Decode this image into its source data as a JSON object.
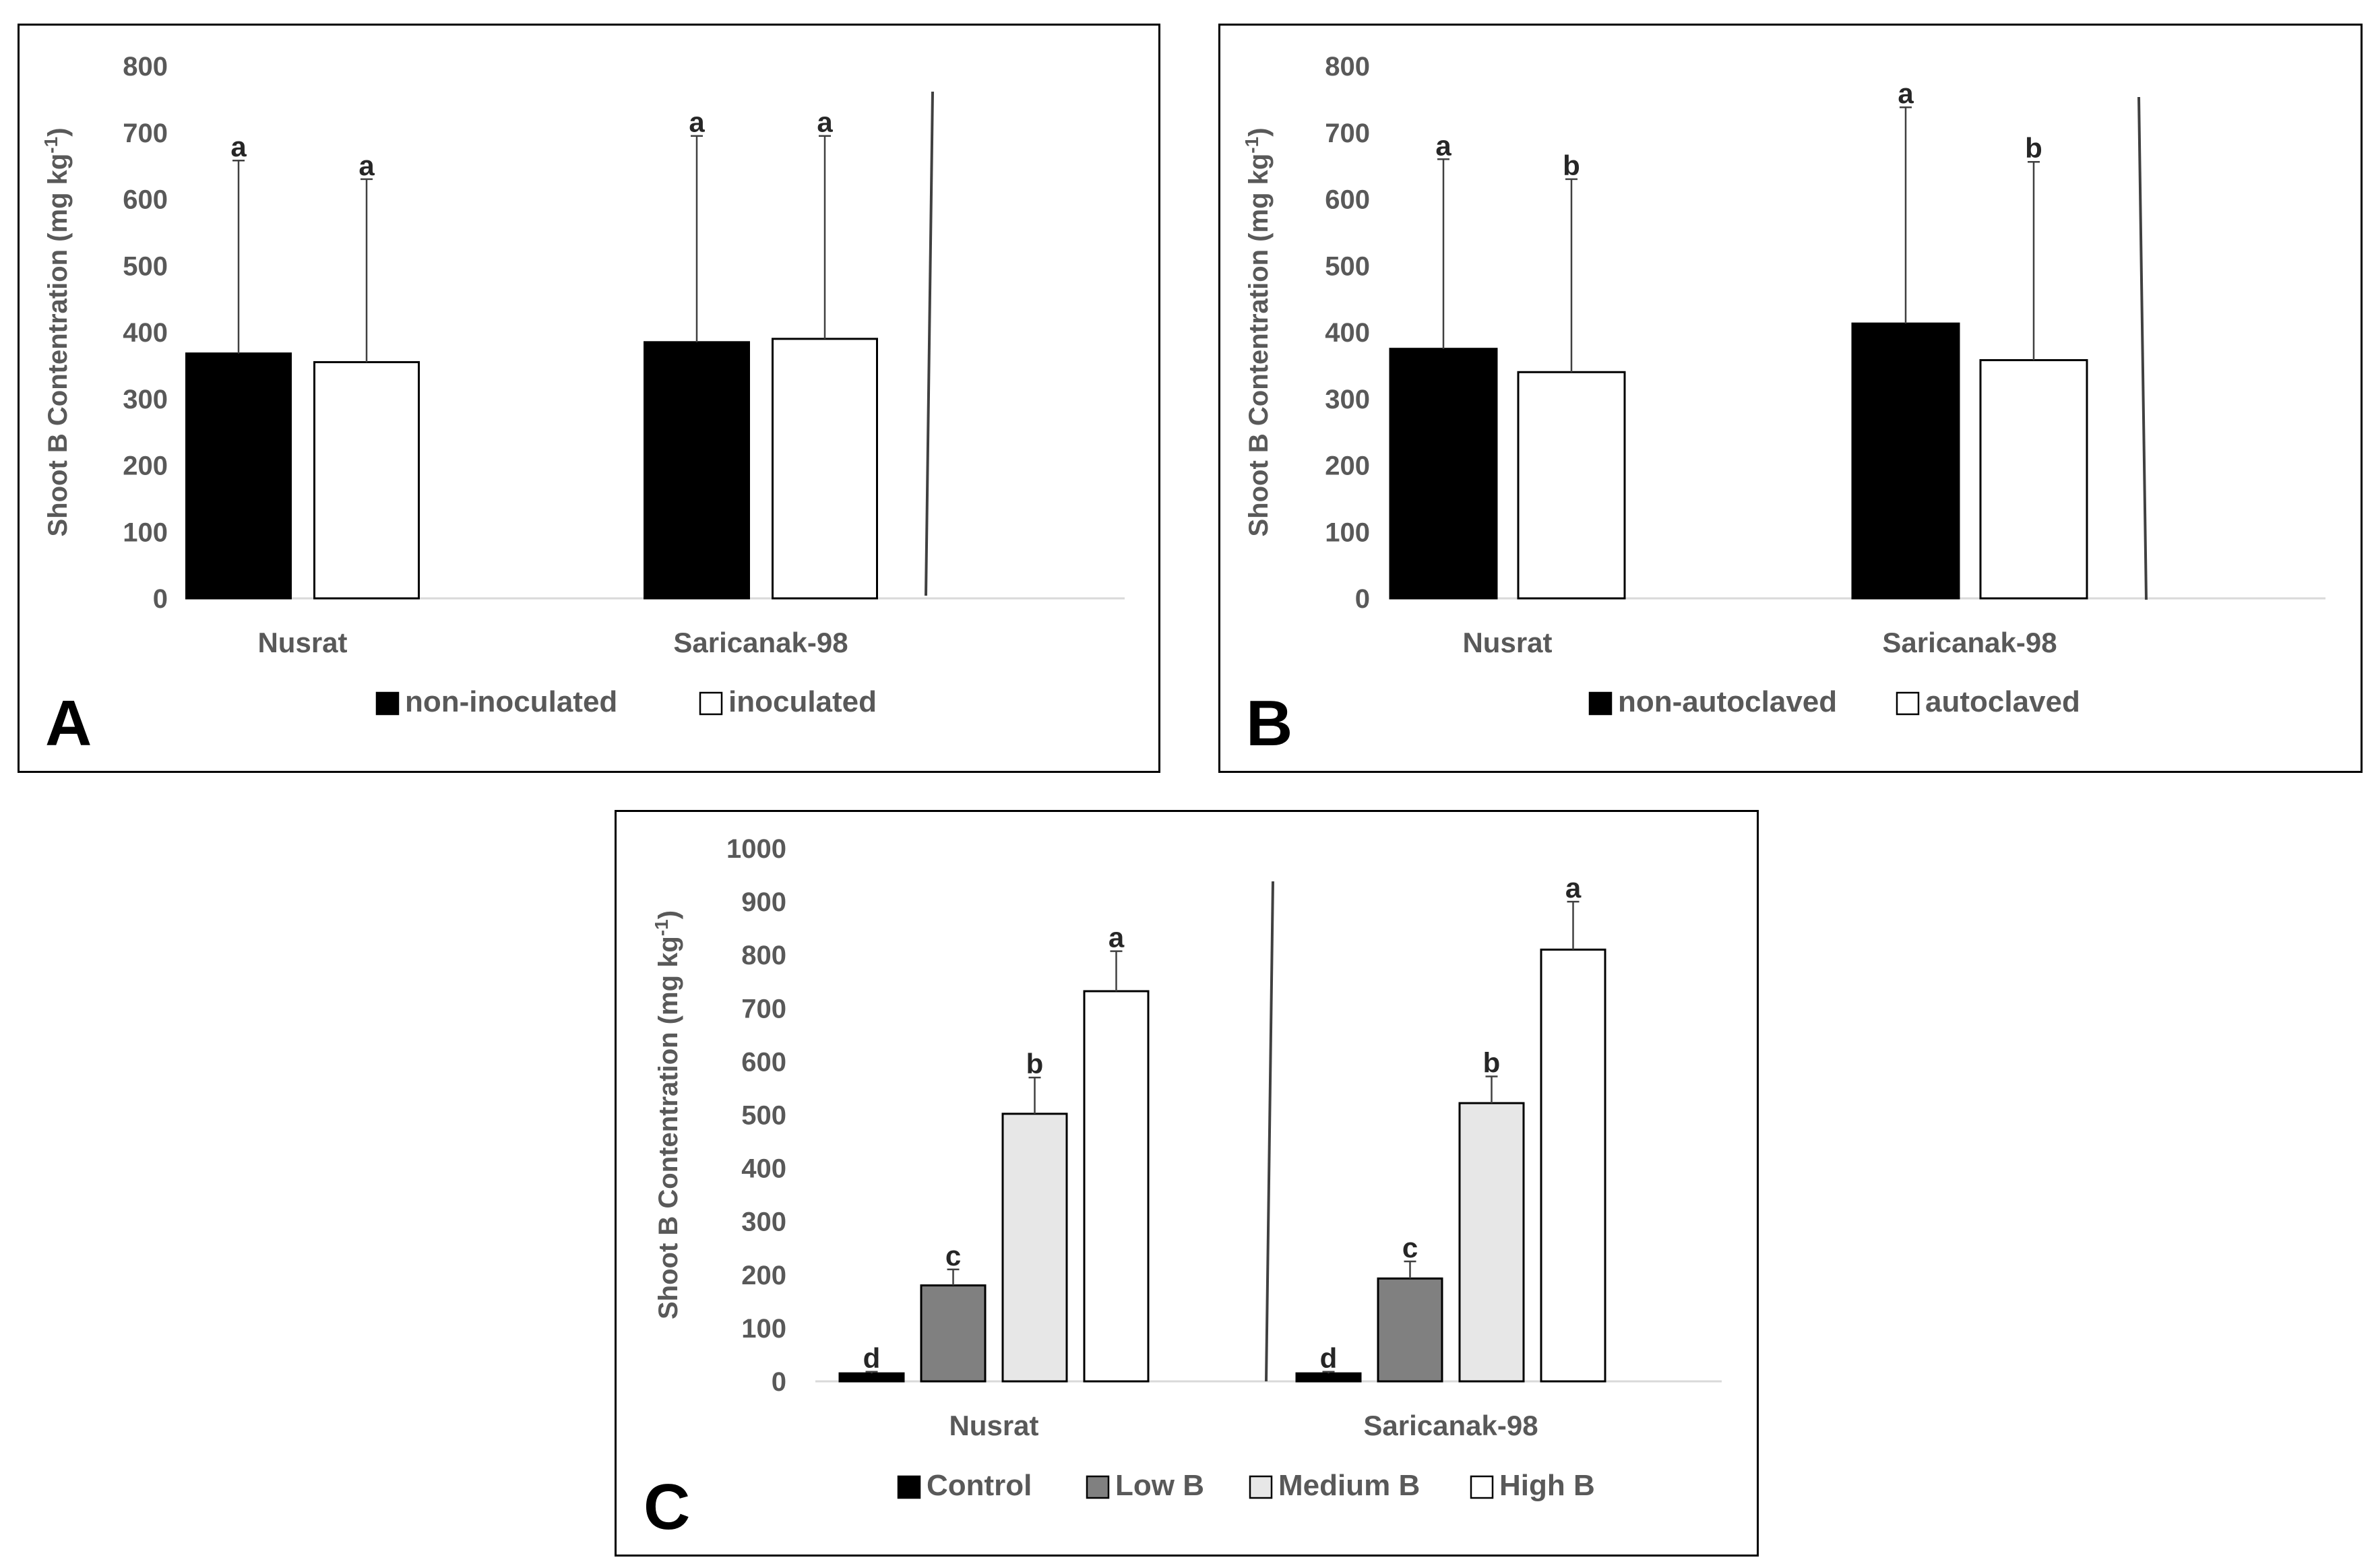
{
  "chart_data": [
    {
      "type": "bar",
      "panel_label": "A",
      "ylabel": "Shoot B Contentration (mg kg",
      "ylabel_sup": "-1",
      "ylabel_end": ")",
      "ylim": [
        0,
        800
      ],
      "yticks": [
        0,
        100,
        200,
        300,
        400,
        500,
        600,
        700,
        800
      ],
      "categories": [
        "Nusrat",
        "Saricanak-98"
      ],
      "series": [
        {
          "name": "non-inoculated",
          "fill": "#000000",
          "values": [
            368,
            385
          ],
          "errors": [
            290,
            310
          ],
          "letters": [
            "a",
            "a"
          ]
        },
        {
          "name": "inoculated",
          "fill": "#ffffff",
          "values": [
            355,
            390
          ],
          "errors": [
            275,
            305
          ],
          "letters": [
            "a",
            "a"
          ]
        }
      ]
    },
    {
      "type": "bar",
      "panel_label": "B",
      "ylabel": "Shoot B Contentration (mg kg",
      "ylabel_sup": "-1",
      "ylabel_end": ")",
      "ylim": [
        0,
        800
      ],
      "yticks": [
        0,
        100,
        200,
        300,
        400,
        500,
        600,
        700,
        800
      ],
      "categories": [
        "Nusrat",
        "Saricanak-98"
      ],
      "series": [
        {
          "name": "non-autoclaved",
          "fill": "#000000",
          "values": [
            375,
            413
          ],
          "errors": [
            285,
            325
          ],
          "letters": [
            "a",
            "a"
          ]
        },
        {
          "name": "autoclaved",
          "fill": "#ffffff",
          "values": [
            340,
            358
          ],
          "errors": [
            290,
            298
          ],
          "letters": [
            "b",
            "b"
          ]
        }
      ]
    },
    {
      "type": "bar",
      "panel_label": "C",
      "ylabel": "Shoot B Contentration (mg kg",
      "ylabel_sup": "-1",
      "ylabel_end": ")",
      "ylim": [
        0,
        1000
      ],
      "yticks": [
        0,
        100,
        200,
        300,
        400,
        500,
        600,
        700,
        800,
        900,
        1000
      ],
      "categories": [
        "Nusrat",
        "Saricanak-98"
      ],
      "series": [
        {
          "name": "Control",
          "fill": "#000000",
          "values": [
            15,
            15
          ],
          "errors": [
            3,
            3
          ],
          "letters": [
            "d",
            "d"
          ]
        },
        {
          "name": "Low B",
          "fill": "#808080",
          "values": [
            180,
            193
          ],
          "errors": [
            30,
            32
          ],
          "letters": [
            "c",
            "c"
          ]
        },
        {
          "name": "Medium B",
          "fill": "#e7e7e7",
          "values": [
            502,
            522
          ],
          "errors": [
            68,
            50
          ],
          "letters": [
            "b",
            "b"
          ]
        },
        {
          "name": "High B",
          "fill": "#ffffff",
          "values": [
            732,
            810
          ],
          "errors": [
            75,
            90
          ],
          "letters": [
            "a",
            "a"
          ]
        }
      ]
    }
  ]
}
